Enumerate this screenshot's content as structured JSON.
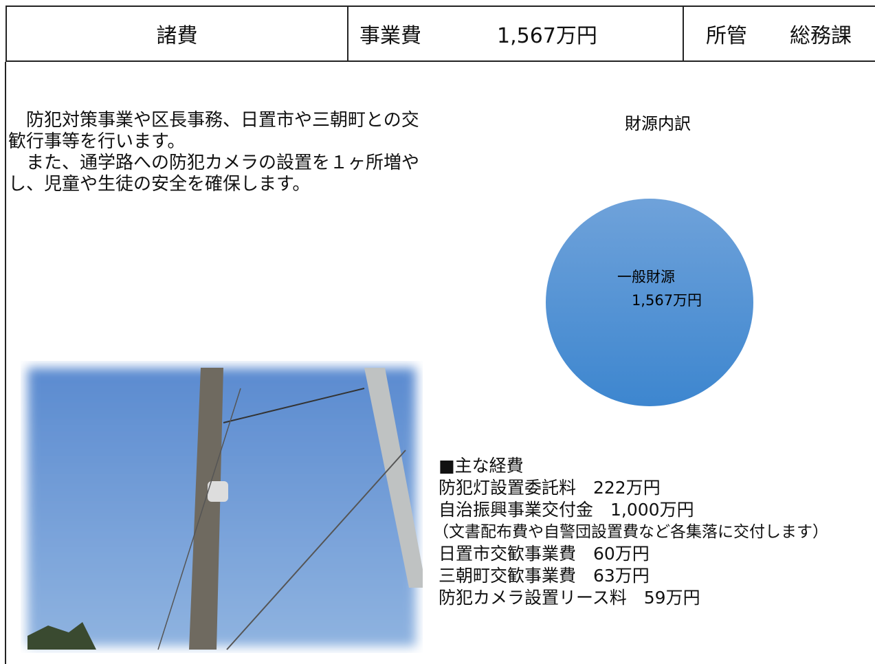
{
  "header": {
    "title": "諸費",
    "cost_label": "事業費",
    "cost": "1,567万円",
    "dept_label": "所管",
    "dept": "総務課"
  },
  "description": [
    "　防犯対策事業や区長事務、日置市や三朝町との交歓行事等を行います。",
    "　また、通学路への防犯カメラの設置を１ヶ所増やし、児童や生徒の安全を確保します。"
  ],
  "chart_data": {
    "type": "pie",
    "title": "財源内訳",
    "categories": [
      "一般財源"
    ],
    "values": [
      1567
    ],
    "value_labels": [
      "1,567万円"
    ],
    "colors": [
      "#4a8fd6"
    ]
  },
  "expenses": {
    "heading": "■主な経費",
    "items": [
      "防犯灯設置委託料　222万円",
      "自治振興事業交付金　1,000万円",
      "（文書配布費や自警団設置費など各集落に交付します）",
      "日置市交歓事業費　60万円",
      "三朝町交歓事業費　63万円",
      "防犯カメラ設置リース料　59万円"
    ]
  }
}
